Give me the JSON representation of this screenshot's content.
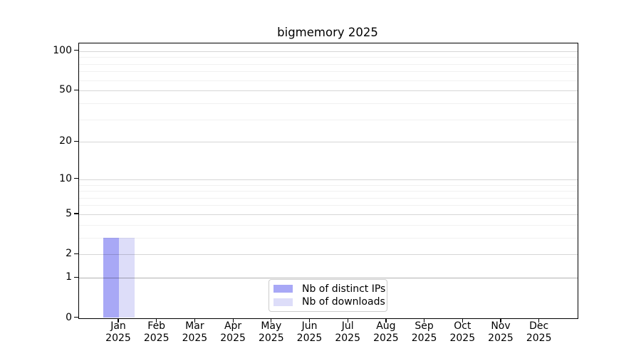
{
  "chart_data": {
    "type": "bar",
    "title": "bigmemory 2025",
    "categories": [
      "Jan",
      "Feb",
      "Mar",
      "Apr",
      "May",
      "Jun",
      "Jul",
      "Aug",
      "Sep",
      "Oct",
      "Nov",
      "Dec"
    ],
    "x_year_label": "2025",
    "series": [
      {
        "name": "Nb of distinct IPs",
        "color": "#a8a8f6",
        "values": [
          3,
          0,
          0,
          0,
          0,
          0,
          0,
          0,
          0,
          0,
          0,
          0
        ]
      },
      {
        "name": "Nb of downloads",
        "color": "#ddddf9",
        "values": [
          3,
          0,
          0,
          0,
          0,
          0,
          0,
          0,
          0,
          0,
          0,
          0
        ]
      }
    ],
    "yscale": "log1p",
    "y_major_ticks": [
      0,
      1,
      2,
      5,
      10,
      20,
      50,
      100
    ],
    "y_minor_ticks": [
      3,
      4,
      6,
      7,
      8,
      9,
      30,
      40,
      60,
      70,
      80,
      90
    ],
    "ylim": [
      0,
      115
    ],
    "grid": "horizontal-major-and-minor",
    "emphasized_gridline_value": 1,
    "legend_position": "bottom-center"
  }
}
